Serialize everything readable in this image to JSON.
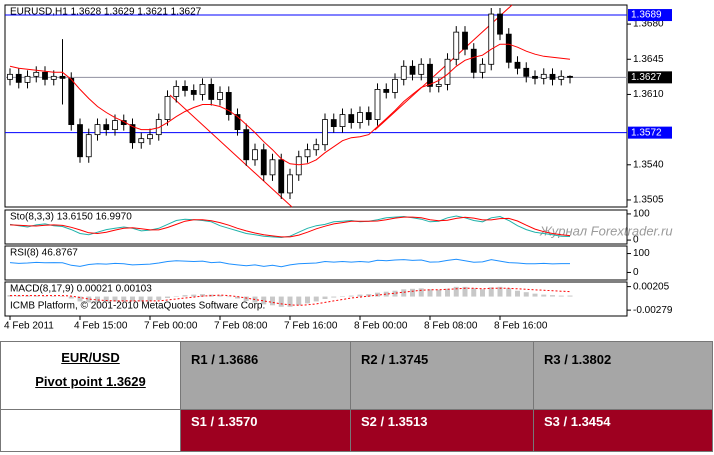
{
  "chart_data": {
    "type": "candlestick",
    "title": "EURUSD,H1  1.3628 1.3629 1.3621 1.3627",
    "categories": [
      "4 Feb 2011",
      null,
      null,
      null,
      null,
      null,
      null,
      null,
      "4 Feb 15:00",
      null,
      null,
      null,
      null,
      null,
      null,
      null,
      "7 Feb 00:00",
      null,
      null,
      null,
      null,
      null,
      null,
      null,
      "7 Feb 08:00",
      null,
      null,
      null,
      null,
      null,
      null,
      null,
      "7 Feb 16:00",
      null,
      null,
      null,
      null,
      null,
      null,
      null,
      "8 Feb 00:00",
      null,
      null,
      null,
      null,
      null,
      null,
      null,
      "8 Feb 08:00",
      null,
      null,
      null,
      null,
      null,
      null,
      null,
      "8 Feb 16:00",
      null,
      null,
      null,
      null,
      null,
      null,
      null,
      null
    ],
    "open": [
      1.3625,
      1.363,
      1.3622,
      1.3628,
      1.3632,
      1.3625,
      1.3628,
      1.3626,
      1.358,
      1.3548,
      1.357,
      1.358,
      1.3575,
      1.3584,
      1.358,
      1.3562,
      1.3566,
      1.357,
      1.3585,
      1.3608,
      1.3618,
      1.3614,
      1.361,
      1.362,
      1.3605,
      1.3612,
      1.359,
      1.3575,
      1.3545,
      1.3555,
      1.353,
      1.3545,
      1.3512,
      1.353,
      1.3548,
      1.3555,
      1.356,
      1.3585,
      1.3578,
      1.359,
      1.3582,
      1.3592,
      1.3585,
      1.3615,
      1.3612,
      1.3625,
      1.3638,
      1.363,
      1.364,
      1.3618,
      1.362,
      1.3645,
      1.3672,
      1.3655,
      1.3632,
      1.364,
      1.369,
      1.367,
      1.3642,
      1.3636,
      1.3628,
      1.3626,
      1.363,
      1.3625,
      1.3628
    ],
    "high": [
      1.3636,
      1.3636,
      1.3634,
      1.3638,
      1.3638,
      1.3634,
      1.3665,
      1.3632,
      1.3586,
      1.3576,
      1.3586,
      1.3586,
      1.359,
      1.359,
      1.3586,
      1.3572,
      1.3576,
      1.3591,
      1.3614,
      1.3624,
      1.3624,
      1.362,
      1.3626,
      1.3626,
      1.3618,
      1.3618,
      1.3596,
      1.3581,
      1.3561,
      1.3561,
      1.3551,
      1.3551,
      1.3536,
      1.3554,
      1.3561,
      1.3566,
      1.3591,
      1.3591,
      1.3596,
      1.3596,
      1.3598,
      1.3598,
      1.3621,
      1.3621,
      1.3631,
      1.3644,
      1.3644,
      1.3646,
      1.3646,
      1.3626,
      1.3651,
      1.3678,
      1.3678,
      1.3661,
      1.3646,
      1.3696,
      1.3696,
      1.3676,
      1.3648,
      1.3642,
      1.3634,
      1.3636,
      1.3636,
      1.3634,
      1.3629
    ],
    "low": [
      1.3619,
      1.3616,
      1.3616,
      1.3622,
      1.3619,
      1.3619,
      1.36,
      1.3574,
      1.3542,
      1.3542,
      1.3564,
      1.3569,
      1.3569,
      1.3574,
      1.3556,
      1.3556,
      1.356,
      1.3564,
      1.3579,
      1.3602,
      1.3608,
      1.3604,
      1.3604,
      1.3599,
      1.3599,
      1.3584,
      1.3569,
      1.3539,
      1.3539,
      1.3524,
      1.3524,
      1.3506,
      1.3506,
      1.3524,
      1.3542,
      1.3549,
      1.3554,
      1.3572,
      1.3572,
      1.3576,
      1.3576,
      1.3579,
      1.3579,
      1.3606,
      1.3606,
      1.3619,
      1.3624,
      1.3624,
      1.3612,
      1.3612,
      1.3614,
      1.3639,
      1.3649,
      1.3626,
      1.3626,
      1.3634,
      1.3664,
      1.3636,
      1.363,
      1.3622,
      1.362,
      1.362,
      1.3619,
      1.3619,
      1.3621
    ],
    "close": [
      1.363,
      1.3622,
      1.3628,
      1.3632,
      1.3625,
      1.3628,
      1.3626,
      1.358,
      1.3548,
      1.357,
      1.358,
      1.3575,
      1.3584,
      1.358,
      1.3562,
      1.3566,
      1.357,
      1.3585,
      1.3608,
      1.3618,
      1.3614,
      1.361,
      1.362,
      1.3605,
      1.3612,
      1.359,
      1.3575,
      1.3545,
      1.3555,
      1.353,
      1.3545,
      1.3512,
      1.353,
      1.3548,
      1.3555,
      1.356,
      1.3585,
      1.3578,
      1.359,
      1.3582,
      1.3592,
      1.3585,
      1.3615,
      1.3612,
      1.3625,
      1.3638,
      1.363,
      1.364,
      1.3618,
      1.362,
      1.3645,
      1.3672,
      1.3655,
      1.3632,
      1.364,
      1.369,
      1.367,
      1.3642,
      1.3636,
      1.3628,
      1.3626,
      1.363,
      1.3625,
      1.3628,
      1.3627
    ],
    "ma": {
      "color": "#ff0000",
      "values": [
        1.3638,
        1.3636,
        1.3635,
        1.3634,
        1.3633,
        1.3632,
        1.3632,
        1.3625,
        1.3615,
        1.3606,
        1.3598,
        1.3592,
        1.3587,
        1.3583,
        1.3578,
        1.3575,
        1.3575,
        1.3577,
        1.3582,
        1.3588,
        1.3593,
        1.3597,
        1.36,
        1.36,
        1.3598,
        1.3594,
        1.3588,
        1.358,
        1.3572,
        1.3563,
        1.3555,
        1.3546,
        1.3541,
        1.354,
        1.3541,
        1.3545,
        1.3552,
        1.3558,
        1.3564,
        1.3567,
        1.3568,
        1.357,
        1.3578,
        1.3586,
        1.3594,
        1.3603,
        1.361,
        1.3617,
        1.362,
        1.3624,
        1.363,
        1.3638,
        1.3644,
        1.3647,
        1.3649,
        1.3655,
        1.366,
        1.366,
        1.3657,
        1.3653,
        1.365,
        1.3648,
        1.3647,
        1.3646,
        1.3645
      ]
    },
    "ylim": [
      1.3498,
      1.3699
    ],
    "yticks": [
      {
        "value": 1.368,
        "label": "1.3680"
      },
      1.3645,
      {
        "value": 1.361,
        "label": "1.3610"
      },
      {
        "value": 1.354,
        "label": "1.3540"
      },
      1.3505
    ],
    "hlines": [
      {
        "value": 1.3689,
        "color": "#0000ff"
      },
      {
        "value": 1.3627,
        "color": "#9090a0"
      },
      {
        "value": 1.3572,
        "color": "#0000ff"
      }
    ],
    "indicators": [
      {
        "label": "Sto(8,3,3) 13.6150 16.9970",
        "ylim": [
          -15,
          115
        ],
        "yticks": [
          100,
          0
        ],
        "series": [
          {
            "color": "#20b2aa",
            "values": [
              60,
              55,
              50,
              58,
              62,
              55,
              52,
              40,
              25,
              20,
              30,
              40,
              45,
              50,
              45,
              35,
              38,
              45,
              60,
              75,
              80,
              78,
              75,
              70,
              55,
              45,
              35,
              25,
              20,
              15,
              12,
              10,
              15,
              30,
              45,
              55,
              60,
              70,
              72,
              75,
              70,
              72,
              78,
              85,
              88,
              90,
              85,
              80,
              70,
              72,
              85,
              92,
              85,
              75,
              70,
              85,
              90,
              75,
              55,
              40,
              30,
              25,
              20,
              15,
              13.615
            ]
          },
          {
            "color": "#ff0000",
            "values": [
              58,
              57,
              55,
              54,
              57,
              58,
              56,
              49,
              39,
              28,
              25,
              30,
              38,
              45,
              47,
              43,
              39,
              39,
              48,
              60,
              72,
              78,
              78,
              74,
              67,
              57,
              45,
              35,
              27,
              20,
              16,
              12,
              12,
              19,
              30,
              43,
              53,
              62,
              67,
              72,
              72,
              72,
              73,
              78,
              84,
              88,
              88,
              85,
              78,
              74,
              76,
              83,
              87,
              84,
              77,
              77,
              82,
              83,
              73,
              57,
              42,
              32,
              25,
              20,
              16.997
            ]
          }
        ]
      },
      {
        "label": "RSI(8) 46.8767",
        "ylim": [
          -40,
          140
        ],
        "yticks": [
          100,
          0
        ],
        "series": [
          {
            "color": "#1e90ff",
            "values": [
              52,
              48,
              50,
              53,
              51,
              52,
              51,
              38,
              32,
              42,
              46,
              44,
              48,
              46,
              40,
              42,
              44,
              50,
              58,
              62,
              60,
              58,
              60,
              52,
              55,
              45,
              40,
              35,
              40,
              32,
              38,
              30,
              40,
              46,
              48,
              50,
              58,
              55,
              58,
              55,
              58,
              55,
              65,
              62,
              66,
              68,
              64,
              66,
              55,
              56,
              64,
              70,
              62,
              54,
              56,
              68,
              60,
              52,
              50,
              46,
              46,
              48,
              45,
              47,
              46.8767
            ]
          }
        ]
      },
      {
        "label": "MACD(8,17,9) 0.00021 0.00103",
        "ylim": [
          -0.004,
          0.003
        ],
        "yticks": [
          0.00205,
          -0.00279
        ],
        "series": [
          {
            "type": "histogram",
            "color": "#c8c8c8",
            "values": [
              0.0003,
              0.0002,
              0.0002,
              0.0002,
              0.0001,
              0.0001,
              0.0001,
              -0.0004,
              -0.001,
              -0.0012,
              -0.0012,
              -0.0011,
              -0.001,
              -0.0009,
              -0.001,
              -0.001,
              -0.0009,
              -0.0007,
              -0.0003,
              0.0001,
              0.0003,
              0.0004,
              0.0005,
              0.0004,
              0.0003,
              0,
              -0.0004,
              -0.0009,
              -0.0012,
              -0.0016,
              -0.0018,
              -0.0021,
              -0.0021,
              -0.0018,
              -0.0014,
              -0.001,
              -0.0005,
              -0.0002,
              0.0001,
              0.0002,
              0.0004,
              0.0005,
              0.0008,
              0.001,
              0.0012,
              0.0015,
              0.0016,
              0.0017,
              0.0015,
              0.0014,
              0.0016,
              0.002,
              0.002,
              0.0017,
              0.0015,
              0.0019,
              0.002,
              0.0017,
              0.0012,
              0.0009,
              0.0006,
              0.0004,
              0.0003,
              0.0002,
              0.00021
            ]
          },
          {
            "type": "line",
            "dash": true,
            "color": "#ff0000",
            "values": [
              0.0002,
              0.0002,
              0.0002,
              0.0002,
              0.0002,
              0.0002,
              0.0002,
              0.0001,
              -0.0002,
              -0.0005,
              -0.0007,
              -0.0008,
              -0.0009,
              -0.0009,
              -0.0009,
              -0.0009,
              -0.0009,
              -0.0009,
              -0.0007,
              -0.0005,
              -0.0003,
              -0.0001,
              0.0001,
              0.0002,
              0.0003,
              0.0002,
              0,
              -0.0003,
              -0.0006,
              -0.0009,
              -0.0012,
              -0.0015,
              -0.0017,
              -0.0018,
              -0.0017,
              -0.0015,
              -0.0012,
              -0.0009,
              -0.0006,
              -0.0003,
              -0.0001,
              0.0001,
              0.0003,
              0.0005,
              0.0007,
              0.0009,
              0.0011,
              0.0013,
              0.0014,
              0.0014,
              0.0015,
              0.0016,
              0.0017,
              0.0017,
              0.0016,
              0.0017,
              0.0017,
              0.0017,
              0.0016,
              0.0015,
              0.0014,
              0.0013,
              0.0012,
              0.0011,
              0.00103
            ]
          }
        ]
      }
    ],
    "copyright": "ICMB Platform, © 2001-2010 MetaQuotes Software Corp.",
    "watermark": "Журнал Forextrader.ru"
  },
  "table": {
    "pair": "EUR/USD",
    "pivot": "Pivot point 1.3629",
    "resistance": [
      "R1 / 1.3686",
      "R2 / 1.3745",
      "R3 / 1.3802"
    ],
    "support": [
      "S1 / 1.3570",
      "S2 / 1.3513",
      "S3 / 1.3454"
    ]
  }
}
